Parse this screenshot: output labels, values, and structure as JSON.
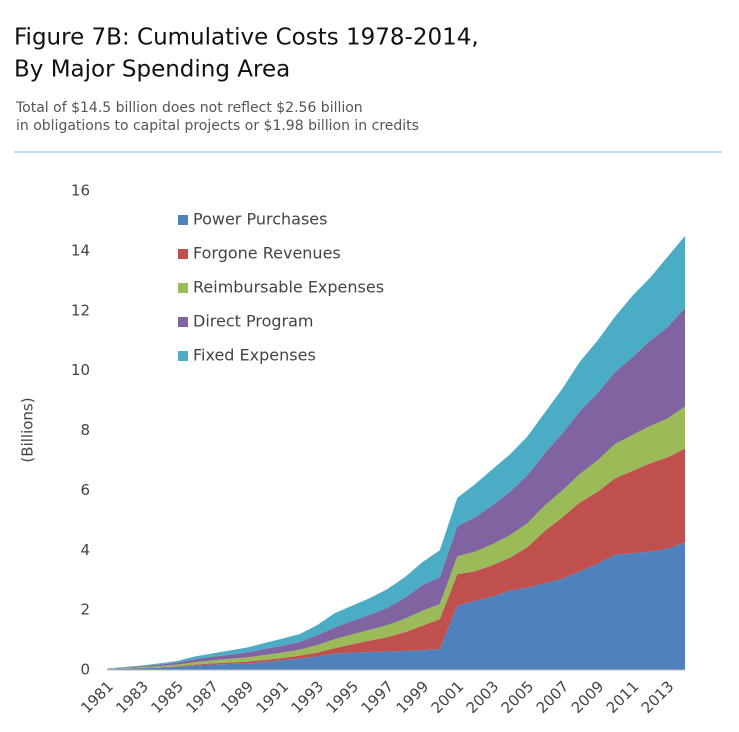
{
  "chart_data": {
    "type": "stacked-area",
    "title": [
      "Figure 7B: Cumulative Costs 1978-2014,",
      "By Major Spending Area"
    ],
    "subtitle": [
      "Total of $14.5 billion does not reflect $2.56 billion",
      "in obligations to capital projects or $1.98 billion in credits"
    ],
    "y_label": "(Billions)",
    "categories": [
      "1981",
      null,
      "1983",
      null,
      "1985",
      null,
      "1987",
      null,
      "1989",
      null,
      "1991",
      null,
      "1993",
      null,
      "1995",
      null,
      "1997",
      null,
      "1999",
      null,
      "2001",
      null,
      "2003",
      null,
      "2005",
      null,
      "2007",
      null,
      "2009",
      null,
      "2011",
      null,
      "2013",
      null
    ],
    "series": [
      {
        "name": "Power Purchases",
        "color": "#4f81bd",
        "values": [
          0.02,
          0.04,
          0.06,
          0.08,
          0.1,
          0.15,
          0.18,
          0.2,
          0.22,
          0.27,
          0.32,
          0.38,
          0.45,
          0.55,
          0.58,
          0.6,
          0.62,
          0.64,
          0.66,
          0.7,
          2.15,
          2.3,
          2.45,
          2.65,
          2.75,
          2.9,
          3.05,
          3.3,
          3.55,
          3.85,
          3.9,
          3.95,
          4.05,
          4.25
        ]
      },
      {
        "name": "Forgone Revenues",
        "color": "#c0504d",
        "values": [
          0,
          0,
          0.01,
          0.01,
          0.02,
          0.03,
          0.04,
          0.05,
          0.06,
          0.07,
          0.08,
          0.1,
          0.13,
          0.18,
          0.28,
          0.38,
          0.48,
          0.62,
          0.82,
          1.0,
          1.05,
          1.0,
          1.05,
          1.1,
          1.35,
          1.75,
          2.05,
          2.3,
          2.4,
          2.55,
          2.75,
          2.95,
          3.05,
          3.15
        ]
      },
      {
        "name": "Reimbursable Expenses",
        "color": "#9bbb59",
        "values": [
          0.01,
          0.02,
          0.03,
          0.04,
          0.06,
          0.08,
          0.1,
          0.12,
          0.14,
          0.16,
          0.18,
          0.2,
          0.25,
          0.3,
          0.33,
          0.36,
          0.4,
          0.45,
          0.5,
          0.5,
          0.6,
          0.65,
          0.7,
          0.75,
          0.8,
          0.85,
          0.9,
          0.95,
          1.05,
          1.15,
          1.2,
          1.25,
          1.3,
          1.4
        ]
      },
      {
        "name": "Direct Program",
        "color": "#8064a2",
        "values": [
          0.01,
          0.02,
          0.03,
          0.05,
          0.07,
          0.1,
          0.12,
          0.14,
          0.17,
          0.2,
          0.23,
          0.26,
          0.33,
          0.4,
          0.45,
          0.5,
          0.58,
          0.7,
          0.85,
          0.9,
          1.0,
          1.15,
          1.3,
          1.45,
          1.6,
          1.75,
          1.9,
          2.1,
          2.25,
          2.4,
          2.6,
          2.85,
          3.05,
          3.3
        ]
      },
      {
        "name": "Fixed Expenses",
        "color": "#4bacc6",
        "values": [
          0.01,
          0.02,
          0.02,
          0.04,
          0.05,
          0.09,
          0.11,
          0.14,
          0.16,
          0.2,
          0.24,
          0.26,
          0.34,
          0.47,
          0.51,
          0.56,
          0.62,
          0.69,
          0.77,
          0.9,
          0.95,
          1.1,
          1.2,
          1.25,
          1.3,
          1.35,
          1.5,
          1.65,
          1.75,
          1.85,
          2.05,
          2.1,
          2.35,
          2.4
        ]
      }
    ],
    "ylim": [
      0,
      16
    ],
    "yticks": [
      0,
      2,
      4,
      6,
      8,
      10,
      12,
      14,
      16
    ],
    "grid": false,
    "legend": "top-left"
  }
}
